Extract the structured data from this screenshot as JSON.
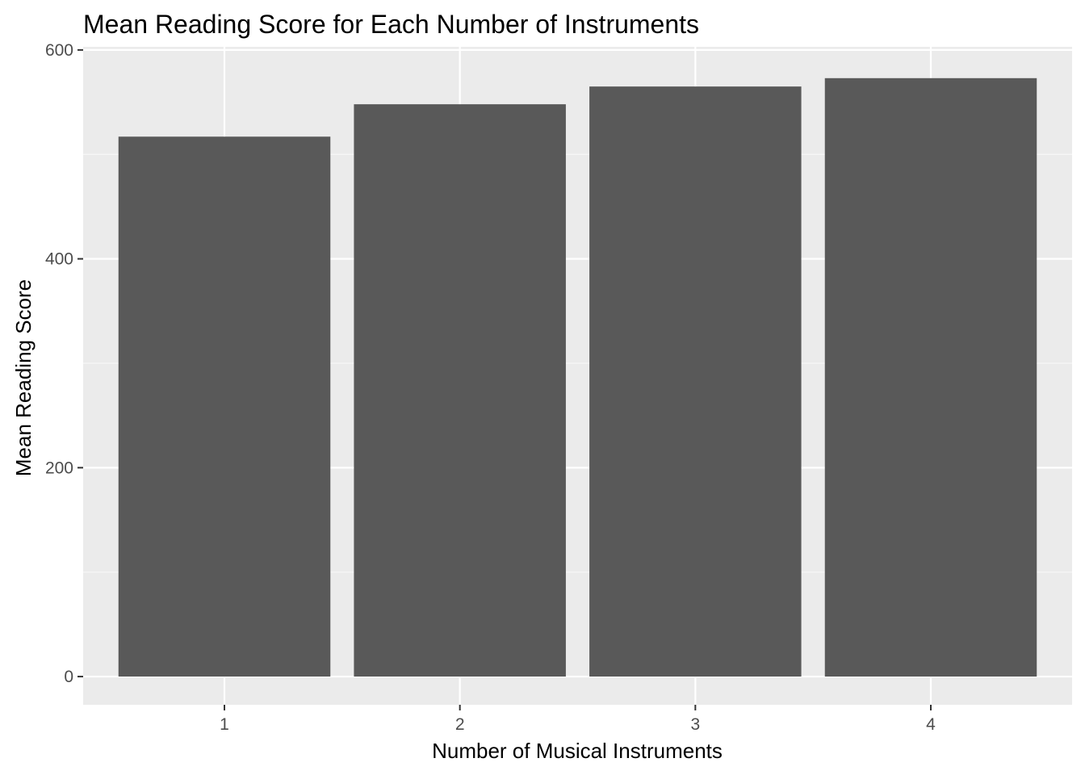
{
  "chart_data": {
    "type": "bar",
    "title": "Mean Reading Score for Each Number of Instruments",
    "xlabel": "Number of Musical Instruments",
    "ylabel": "Mean Reading Score",
    "categories": [
      "1",
      "2",
      "3",
      "4"
    ],
    "values": [
      517,
      548,
      565,
      573
    ],
    "ylim": [
      -27,
      603
    ],
    "yticks": [
      0,
      200,
      400,
      600
    ],
    "grid": true,
    "legend": "none",
    "colors": {
      "bar": "#595959",
      "panel_background": "#ebebeb",
      "grid_major": "#ffffff",
      "grid_minor": "#f7f7f7",
      "tick_text": "#4d4d4d",
      "tick_mark": "#333333"
    }
  }
}
